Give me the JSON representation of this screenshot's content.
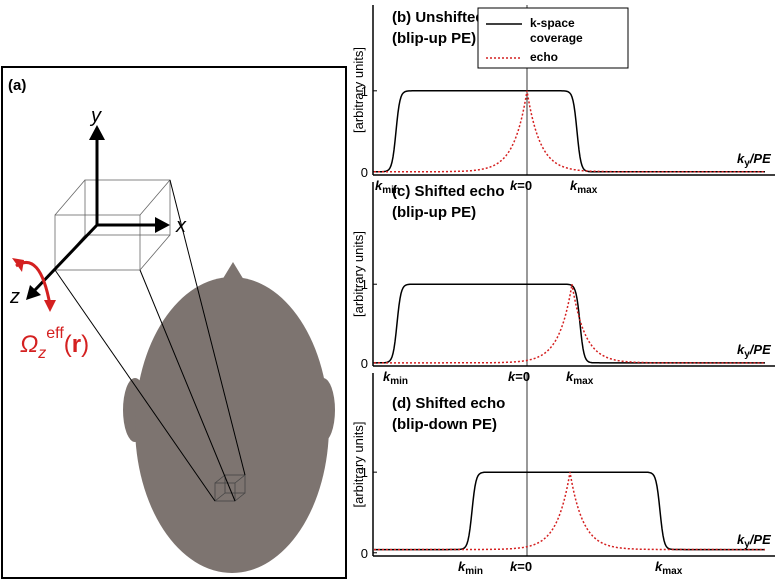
{
  "panel_a": {
    "label": "(a)",
    "axis_y": "y",
    "axis_x": "x",
    "axis_z": "z",
    "omega": {
      "symbol": "Ω",
      "subscript": "z",
      "superscript": "eff",
      "open": "(",
      "argument": "r",
      "close": ")"
    }
  },
  "panels": [
    {
      "label": "(b) Unshifted echo",
      "sublabel": "(blip-up PE)",
      "y_label": "[arbitrary units]",
      "ylim": [
        -0.04,
        2.06
      ],
      "yticks": [
        0,
        1
      ],
      "x_labels": [
        {
          "symbol": "k",
          "subscript": "min"
        },
        {
          "symbol": "k",
          "suffix": "=0"
        },
        {
          "symbol": "k",
          "subscript": "max"
        }
      ],
      "x_axis_label": {
        "symbol": "k",
        "subscript": "y",
        "suffix": "/PE"
      },
      "legend": [
        {
          "name": "k-space coverage",
          "color": "#000000"
        },
        {
          "name": "echo",
          "color": "#d42020"
        }
      ]
    },
    {
      "label": "(c) Shifted echo",
      "sublabel": "(blip-up PE)",
      "y_label": "[arbitrary units]",
      "ylim": [
        -0.04,
        2.3
      ],
      "yticks": [
        0,
        1
      ],
      "x_labels": [
        {
          "symbol": "k",
          "subscript": "min"
        },
        {
          "symbol": "k",
          "suffix": "=0"
        },
        {
          "symbol": "k",
          "subscript": "max"
        }
      ],
      "x_axis_label": {
        "symbol": "k",
        "subscript": "y",
        "suffix": "/PE"
      }
    },
    {
      "label": "(d) Shifted echo",
      "sublabel": "(blip-down PE)",
      "y_label": "[arbitrary units]",
      "ylim": [
        -0.04,
        2.23
      ],
      "yticks": [
        0,
        1
      ],
      "x_labels": [
        {
          "symbol": "k",
          "subscript": "min"
        },
        {
          "symbol": "k",
          "suffix": "=0"
        },
        {
          "symbol": "k",
          "subscript": "max"
        }
      ],
      "x_axis_label": {
        "symbol": "k",
        "subscript": "y",
        "suffix": "/PE"
      }
    }
  ]
}
